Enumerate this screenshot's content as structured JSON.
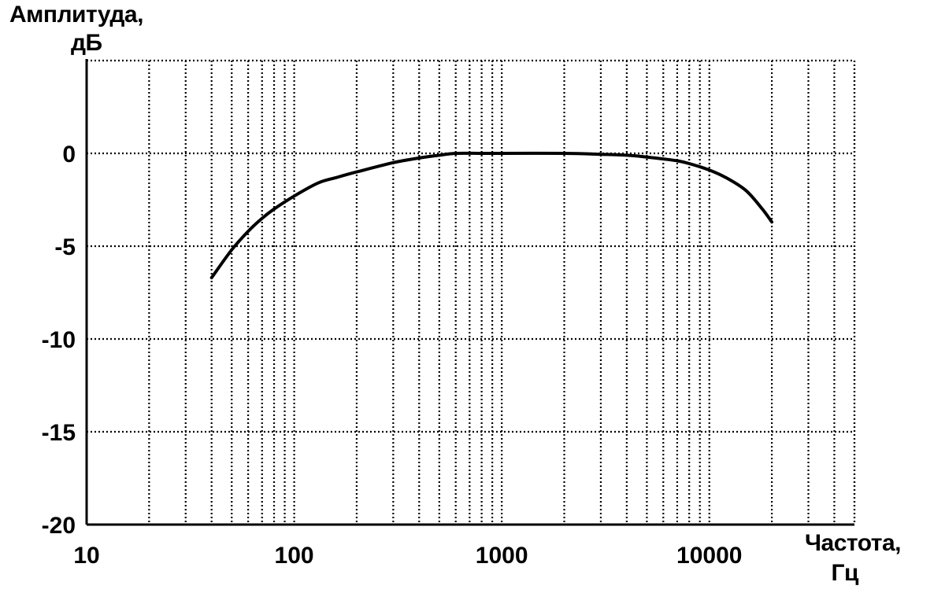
{
  "chart_data": {
    "type": "line",
    "ylabel_lines": [
      "Амплитуда,",
      "дБ"
    ],
    "xlabel_lines": [
      "Частота,",
      "Гц"
    ],
    "x_scale": "log",
    "xlim": [
      10,
      50000
    ],
    "ylim": [
      -20,
      5
    ],
    "x_tick_values": [
      10,
      100,
      1000,
      10000
    ],
    "x_tick_labels": [
      "10",
      "100",
      "1000",
      "10000"
    ],
    "y_tick_values": [
      0,
      -5,
      -10,
      -15,
      -20
    ],
    "y_tick_labels": [
      "0",
      "-5",
      "-10",
      "-15",
      "-20"
    ],
    "y_grid_values": [
      5,
      0,
      -5,
      -10,
      -15
    ],
    "grid": true,
    "series": [
      {
        "x": [
          40,
          50,
          60,
          70,
          80,
          100,
          130,
          160,
          200,
          300,
          400,
          500,
          600,
          800,
          1000,
          2000,
          3000,
          4000,
          5000,
          6000,
          7000,
          8000,
          10000,
          12000,
          15000,
          18000,
          20000
        ],
        "y": [
          -6.7,
          -5.2,
          -4.2,
          -3.5,
          -3.0,
          -2.3,
          -1.6,
          -1.3,
          -1.0,
          -0.5,
          -0.25,
          -0.1,
          0.0,
          0.0,
          0.0,
          0.0,
          -0.05,
          -0.1,
          -0.2,
          -0.3,
          -0.4,
          -0.55,
          -0.9,
          -1.3,
          -2.0,
          -3.0,
          -3.7
        ]
      }
    ]
  }
}
